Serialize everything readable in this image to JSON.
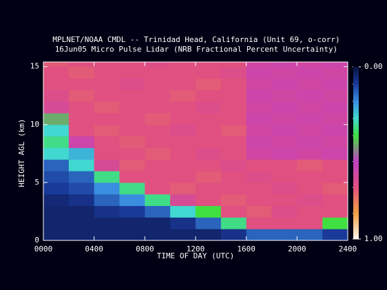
{
  "chart_data": {
    "type": "heatmap",
    "title": "MPLNET/NOAA CMDL -- Trinidad Head, California (Unit 69, o-corr)",
    "subtitle": "16Jun05 Micro Pulse Lidar (NRB Fractional Percent Uncertainty)",
    "x_label": "TIME OF DAY (UTC)",
    "y_label": "HEIGHT AGL (km)",
    "xlim": [
      0,
      24
    ],
    "ylim": [
      0,
      15.4
    ],
    "xticks": [
      {
        "value": 0,
        "label": "0000"
      },
      {
        "value": 4,
        "label": "0400"
      },
      {
        "value": 8,
        "label": "0800"
      },
      {
        "value": 12,
        "label": "1200"
      },
      {
        "value": 16,
        "label": "1600"
      },
      {
        "value": 20,
        "label": "2000"
      },
      {
        "value": 24,
        "label": "2400"
      }
    ],
    "yticks": [
      0,
      5,
      10,
      15
    ],
    "x_edges": [
      0,
      2,
      4,
      6,
      8,
      10,
      12,
      14,
      16,
      18,
      20,
      22,
      24
    ],
    "y_edges": [
      0,
      1,
      2,
      3,
      4,
      5,
      6,
      7,
      8,
      9,
      10,
      11,
      12,
      13,
      14,
      15,
      15.4
    ],
    "z": [
      [
        0.05,
        0.05,
        0.05,
        0.05,
        0.05,
        0.05,
        0.05,
        0.08,
        0.15,
        0.15,
        0.15,
        0.1
      ],
      [
        0.05,
        0.05,
        0.05,
        0.05,
        0.05,
        0.08,
        0.15,
        0.35,
        0.7,
        0.7,
        0.7,
        0.4
      ],
      [
        0.05,
        0.05,
        0.08,
        0.1,
        0.15,
        0.3,
        0.4,
        0.7,
        0.72,
        0.68,
        0.7,
        0.7
      ],
      [
        0.06,
        0.08,
        0.15,
        0.2,
        0.35,
        0.65,
        0.7,
        0.72,
        0.7,
        0.7,
        0.68,
        0.7
      ],
      [
        0.1,
        0.12,
        0.2,
        0.35,
        0.7,
        0.72,
        0.7,
        0.7,
        0.7,
        0.68,
        0.7,
        0.72
      ],
      [
        0.12,
        0.15,
        0.35,
        0.7,
        0.7,
        0.7,
        0.72,
        0.7,
        0.68,
        0.7,
        0.7,
        0.7
      ],
      [
        0.15,
        0.3,
        0.65,
        0.72,
        0.7,
        0.7,
        0.7,
        0.68,
        0.7,
        0.7,
        0.72,
        0.7
      ],
      [
        0.3,
        0.25,
        0.7,
        0.7,
        0.72,
        0.7,
        0.68,
        0.7,
        0.62,
        0.6,
        0.62,
        0.6
      ],
      [
        0.35,
        0.6,
        0.7,
        0.72,
        0.7,
        0.7,
        0.7,
        0.7,
        0.6,
        0.62,
        0.6,
        0.62
      ],
      [
        0.3,
        0.7,
        0.72,
        0.7,
        0.7,
        0.68,
        0.7,
        0.72,
        0.62,
        0.6,
        0.62,
        0.6
      ],
      [
        0.45,
        0.7,
        0.7,
        0.7,
        0.72,
        0.7,
        0.7,
        0.7,
        0.6,
        0.62,
        0.6,
        0.62
      ],
      [
        0.65,
        0.7,
        0.72,
        0.7,
        0.7,
        0.7,
        0.68,
        0.7,
        0.62,
        0.6,
        0.62,
        0.6
      ],
      [
        0.68,
        0.72,
        0.7,
        0.7,
        0.7,
        0.72,
        0.7,
        0.7,
        0.6,
        0.62,
        0.6,
        0.62
      ],
      [
        0.7,
        0.7,
        0.7,
        0.68,
        0.7,
        0.7,
        0.72,
        0.7,
        0.62,
        0.6,
        0.62,
        0.6
      ],
      [
        0.7,
        0.72,
        0.7,
        0.7,
        0.7,
        0.7,
        0.7,
        0.68,
        0.6,
        0.62,
        0.6,
        0.62
      ],
      [
        0.72,
        0.7,
        0.7,
        0.7,
        0.68,
        0.7,
        0.7,
        0.7,
        0.62,
        0.6,
        0.62,
        0.6
      ]
    ],
    "colorscale": [
      [
        0,
        "#0a1040"
      ],
      [
        0.1,
        "#1a3a9a"
      ],
      [
        0.2,
        "#3a8ee0"
      ],
      [
        0.3,
        "#40d8d0"
      ],
      [
        0.4,
        "#40e040"
      ],
      [
        0.55,
        "#c040c0"
      ],
      [
        0.7,
        "#e05080"
      ],
      [
        0.85,
        "#f0a040"
      ],
      [
        1,
        "#fff8f0"
      ]
    ],
    "colorbar_ticks": [
      {
        "value": 0,
        "label": "0.00"
      },
      {
        "value": 1,
        "label": "1.00"
      }
    ]
  }
}
